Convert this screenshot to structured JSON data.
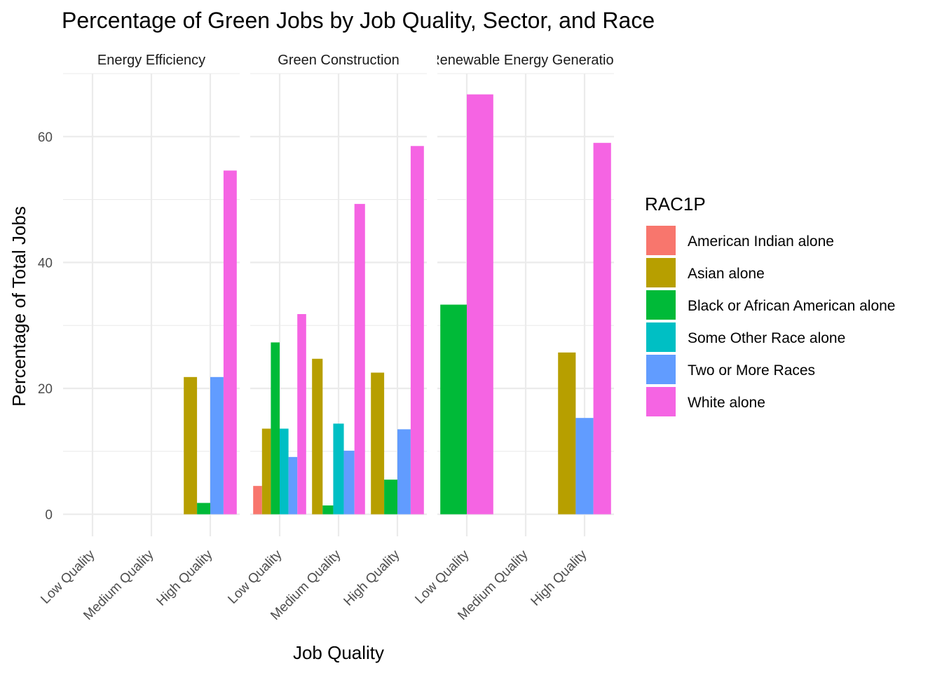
{
  "chart_data": {
    "type": "bar",
    "title": "Percentage of Green Jobs by Job Quality, Sector, and Race",
    "xlabel": "Job Quality",
    "ylabel": "Percentage of Total Jobs",
    "ylim": [
      -3.5,
      70
    ],
    "yticks": [
      0,
      20,
      40,
      60
    ],
    "grid": true,
    "legend_position": "right",
    "categories": [
      "Low Quality",
      "Medium Quality",
      "High Quality"
    ],
    "legend": {
      "title": "RAC1P",
      "entries": [
        {
          "name": "American Indian alone",
          "color": "#F8766D"
        },
        {
          "name": "Asian alone",
          "color": "#B79F00"
        },
        {
          "name": "Black or African American alone",
          "color": "#00BA38"
        },
        {
          "name": "Some Other Race alone",
          "color": "#00BFC4"
        },
        {
          "name": "Two or More Races",
          "color": "#619CFF"
        },
        {
          "name": "White alone",
          "color": "#F564E3"
        }
      ]
    },
    "facets": [
      {
        "label": "Energy Efficiency",
        "groups": [
          {
            "category": "Low Quality",
            "bars": []
          },
          {
            "category": "Medium Quality",
            "bars": []
          },
          {
            "category": "High Quality",
            "bars": [
              {
                "race": "Asian alone",
                "value": 21.8
              },
              {
                "race": "Black or African American alone",
                "value": 1.8
              },
              {
                "race": "Two or More Races",
                "value": 21.8
              },
              {
                "race": "White alone",
                "value": 54.6
              }
            ]
          }
        ]
      },
      {
        "label": "Green Construction",
        "groups": [
          {
            "category": "Low Quality",
            "bars": [
              {
                "race": "American Indian alone",
                "value": 4.5
              },
              {
                "race": "Asian alone",
                "value": 13.6
              },
              {
                "race": "Black or African American alone",
                "value": 27.3
              },
              {
                "race": "Some Other Race alone",
                "value": 13.6
              },
              {
                "race": "Two or More Races",
                "value": 9.1
              },
              {
                "race": "White alone",
                "value": 31.8
              }
            ]
          },
          {
            "category": "Medium Quality",
            "bars": [
              {
                "race": "Asian alone",
                "value": 24.7
              },
              {
                "race": "Black or African American alone",
                "value": 1.4
              },
              {
                "race": "Some Other Race alone",
                "value": 14.4
              },
              {
                "race": "Two or More Races",
                "value": 10.1
              },
              {
                "race": "White alone",
                "value": 49.3
              }
            ]
          },
          {
            "category": "High Quality",
            "bars": [
              {
                "race": "Asian alone",
                "value": 22.5
              },
              {
                "race": "Black or African American alone",
                "value": 5.5
              },
              {
                "race": "Two or More Races",
                "value": 13.5
              },
              {
                "race": "White alone",
                "value": 58.5
              }
            ]
          }
        ]
      },
      {
        "label": "Renewable Energy Generation",
        "groups": [
          {
            "category": "Low Quality",
            "bars": [
              {
                "race": "Black or African American alone",
                "value": 33.3
              },
              {
                "race": "White alone",
                "value": 66.7
              }
            ]
          },
          {
            "category": "Medium Quality",
            "bars": []
          },
          {
            "category": "High Quality",
            "bars": [
              {
                "race": "Asian alone",
                "value": 25.7
              },
              {
                "race": "Two or More Races",
                "value": 15.3
              },
              {
                "race": "White alone",
                "value": 59.0
              }
            ]
          }
        ]
      }
    ]
  }
}
